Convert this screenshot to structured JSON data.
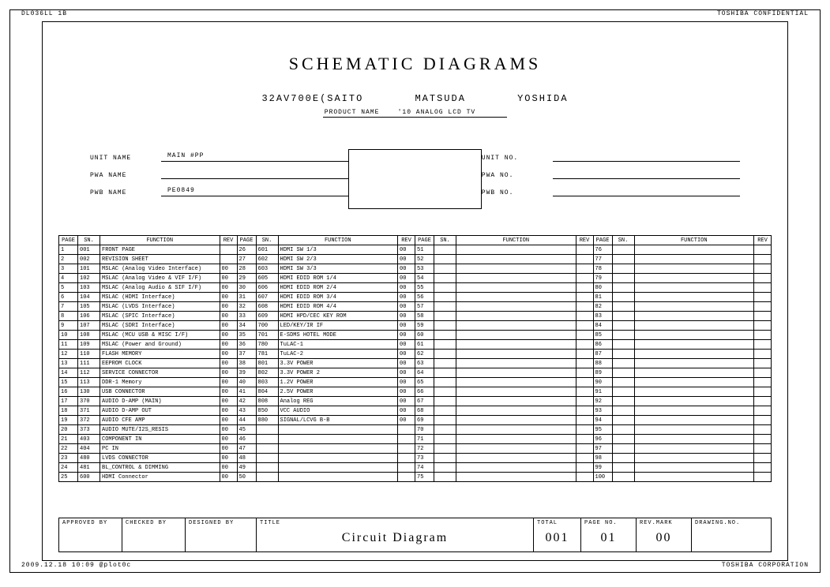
{
  "corner": {
    "top_left": "DL036LL 1B",
    "top_right": "TOSHIBA CONFIDENTIAL",
    "bottom_left": "2009.12.18    10:09    @plot0c",
    "bottom_right": "TOSHIBA CORPORATION"
  },
  "header": {
    "main_title": "SCHEMATIC DIAGRAMS",
    "model": "32AV700E(SAITO",
    "name2": "MATSUDA",
    "name3": "YOSHIDA",
    "product_label": "PRODUCT NAME",
    "product_name": "'10 ANALOG LCD TV"
  },
  "fields_left": [
    {
      "label": "UNIT NAME",
      "value": "MAIN #PP"
    },
    {
      "label": "PWA NAME",
      "value": ""
    },
    {
      "label": "PWB NAME",
      "value": "PE0849"
    }
  ],
  "fields_right": [
    {
      "label": "UNIT NO.",
      "value": ""
    },
    {
      "label": "PWA NO.",
      "value": ""
    },
    {
      "label": "PWB NO.",
      "value": ""
    }
  ],
  "table": {
    "headers": [
      "PAGE",
      "SN.",
      "FUNCTION",
      "REV"
    ],
    "columns": 4,
    "col1": [
      {
        "page": "1",
        "sn": "001",
        "func": "FRONT PAGE",
        "rev": ""
      },
      {
        "page": "2",
        "sn": "002",
        "func": "REVISION SHEET",
        "rev": ""
      },
      {
        "page": "3",
        "sn": "101",
        "func": "MSLAC (Analog Video Interface)",
        "rev": "00"
      },
      {
        "page": "4",
        "sn": "102",
        "func": "MSLAC (Analog Video & VIF I/F)",
        "rev": "00"
      },
      {
        "page": "5",
        "sn": "103",
        "func": "MSLAC (Analog Audio & SIF I/F)",
        "rev": "00"
      },
      {
        "page": "6",
        "sn": "104",
        "func": "MSLAC (HDMI Interface)",
        "rev": "00"
      },
      {
        "page": "7",
        "sn": "105",
        "func": "MSLAC (LVDS Interface)",
        "rev": "00"
      },
      {
        "page": "8",
        "sn": "106",
        "func": "MSLAC (SPIC Interface)",
        "rev": "00"
      },
      {
        "page": "9",
        "sn": "107",
        "func": "MSLAC (SDRI Interface)",
        "rev": "00"
      },
      {
        "page": "10",
        "sn": "108",
        "func": "MSLAC (MCU USB & MISC I/F)",
        "rev": "00"
      },
      {
        "page": "11",
        "sn": "109",
        "func": "MSLAC (Power and Ground)",
        "rev": "00"
      },
      {
        "page": "12",
        "sn": "110",
        "func": "FLASH MEMORY",
        "rev": "00"
      },
      {
        "page": "13",
        "sn": "111",
        "func": "EEPROM CLOCK",
        "rev": "00"
      },
      {
        "page": "14",
        "sn": "112",
        "func": "SERVICE CONNECTOR",
        "rev": "00"
      },
      {
        "page": "15",
        "sn": "113",
        "func": "DDR-1 Memory",
        "rev": "00"
      },
      {
        "page": "16",
        "sn": "130",
        "func": "USB CONNECTOR",
        "rev": "00"
      },
      {
        "page": "17",
        "sn": "370",
        "func": "AUDIO D-AMP (MAIN)",
        "rev": "00"
      },
      {
        "page": "18",
        "sn": "371",
        "func": "AUDIO D-AMP OUT",
        "rev": "00"
      },
      {
        "page": "19",
        "sn": "372",
        "func": "AUDIO CFE AMP",
        "rev": "00"
      },
      {
        "page": "20",
        "sn": "373",
        "func": "AUDIO MUTE/I2S_RESIS",
        "rev": "00"
      },
      {
        "page": "21",
        "sn": "403",
        "func": "COMPONENT IN",
        "rev": "00"
      },
      {
        "page": "22",
        "sn": "404",
        "func": "PC IN",
        "rev": "00"
      },
      {
        "page": "23",
        "sn": "480",
        "func": "LVDS CONNECTOR",
        "rev": "00"
      },
      {
        "page": "24",
        "sn": "481",
        "func": "BL_CONTROL & DIMMING",
        "rev": "00"
      },
      {
        "page": "25",
        "sn": "600",
        "func": "HDMI Connector",
        "rev": "00"
      }
    ],
    "col2": [
      {
        "page": "26",
        "sn": "601",
        "func": "HDMI SW 1/3",
        "rev": "00"
      },
      {
        "page": "27",
        "sn": "602",
        "func": "HDMI SW 2/3",
        "rev": "00"
      },
      {
        "page": "28",
        "sn": "603",
        "func": "HDMI SW 3/3",
        "rev": "00"
      },
      {
        "page": "29",
        "sn": "605",
        "func": "HDMI EDID ROM 1/4",
        "rev": "00"
      },
      {
        "page": "30",
        "sn": "606",
        "func": "HDMI EDID ROM 2/4",
        "rev": "00"
      },
      {
        "page": "31",
        "sn": "607",
        "func": "HDMI EDID ROM 3/4",
        "rev": "00"
      },
      {
        "page": "32",
        "sn": "608",
        "func": "HDMI EDID ROM 4/4",
        "rev": "00"
      },
      {
        "page": "33",
        "sn": "609",
        "func": "HDMI HPD/CEC KEY ROM",
        "rev": "00"
      },
      {
        "page": "34",
        "sn": "700",
        "func": "LED/KEY/IR IF",
        "rev": "00"
      },
      {
        "page": "35",
        "sn": "701",
        "func": "E-SDMS HOTEL MODE",
        "rev": "00"
      },
      {
        "page": "36",
        "sn": "780",
        "func": "TuLAC-1",
        "rev": "00"
      },
      {
        "page": "37",
        "sn": "781",
        "func": "TuLAC-2",
        "rev": "00"
      },
      {
        "page": "38",
        "sn": "801",
        "func": "3.3V POWER",
        "rev": "00"
      },
      {
        "page": "39",
        "sn": "802",
        "func": "3.3V POWER 2",
        "rev": "00"
      },
      {
        "page": "40",
        "sn": "803",
        "func": "1.2V POWER",
        "rev": "00"
      },
      {
        "page": "41",
        "sn": "804",
        "func": "2.5V POWER",
        "rev": "00"
      },
      {
        "page": "42",
        "sn": "808",
        "func": "Analog REG",
        "rev": "00"
      },
      {
        "page": "43",
        "sn": "850",
        "func": "VCC AUDIO",
        "rev": "00"
      },
      {
        "page": "44",
        "sn": "880",
        "func": "SIGNAL/LCVG B-B",
        "rev": "00"
      },
      {
        "page": "45",
        "sn": "",
        "func": "",
        "rev": ""
      },
      {
        "page": "46",
        "sn": "",
        "func": "",
        "rev": ""
      },
      {
        "page": "47",
        "sn": "",
        "func": "",
        "rev": ""
      },
      {
        "page": "48",
        "sn": "",
        "func": "",
        "rev": ""
      },
      {
        "page": "49",
        "sn": "",
        "func": "",
        "rev": ""
      },
      {
        "page": "50",
        "sn": "",
        "func": "",
        "rev": ""
      }
    ],
    "col3": [
      {
        "page": "51"
      },
      {
        "page": "52"
      },
      {
        "page": "53"
      },
      {
        "page": "54"
      },
      {
        "page": "55"
      },
      {
        "page": "56"
      },
      {
        "page": "57"
      },
      {
        "page": "58"
      },
      {
        "page": "59"
      },
      {
        "page": "60"
      },
      {
        "page": "61"
      },
      {
        "page": "62"
      },
      {
        "page": "63"
      },
      {
        "page": "64"
      },
      {
        "page": "65"
      },
      {
        "page": "66"
      },
      {
        "page": "67"
      },
      {
        "page": "68"
      },
      {
        "page": "69"
      },
      {
        "page": "70"
      },
      {
        "page": "71"
      },
      {
        "page": "72"
      },
      {
        "page": "73"
      },
      {
        "page": "74"
      },
      {
        "page": "75"
      }
    ],
    "col4": [
      {
        "page": "76"
      },
      {
        "page": "77"
      },
      {
        "page": "78"
      },
      {
        "page": "79"
      },
      {
        "page": "80"
      },
      {
        "page": "81"
      },
      {
        "page": "82"
      },
      {
        "page": "83"
      },
      {
        "page": "84"
      },
      {
        "page": "85"
      },
      {
        "page": "86"
      },
      {
        "page": "87"
      },
      {
        "page": "88"
      },
      {
        "page": "89"
      },
      {
        "page": "90"
      },
      {
        "page": "91"
      },
      {
        "page": "92"
      },
      {
        "page": "93"
      },
      {
        "page": "94"
      },
      {
        "page": "95"
      },
      {
        "page": "96"
      },
      {
        "page": "97"
      },
      {
        "page": "98"
      },
      {
        "page": "99"
      },
      {
        "page": "100"
      }
    ]
  },
  "footer": {
    "approved": "APPROVED BY",
    "checked": "CHECKED BY",
    "designed": "DESIGNED BY",
    "title_label": "TITLE",
    "title_value": "Circuit Diagram",
    "total_label": "TOTAL",
    "total_value": "001",
    "page_label": "PAGE NO.",
    "page_value": "01",
    "rev_label": "REV.MARK",
    "rev_value": "00",
    "dwg_label": "DRAWING.NO."
  }
}
